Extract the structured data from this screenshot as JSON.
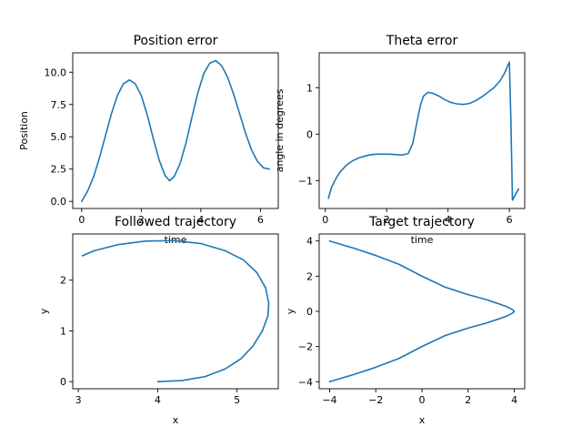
{
  "chart_data": [
    {
      "type": "line",
      "title": "Position error",
      "xlabel": "time",
      "ylabel": "Position",
      "xlim": [
        -0.3,
        6.6
      ],
      "ylim": [
        -0.55,
        11.5
      ],
      "xticks": [
        {
          "v": 0,
          "label": "0"
        },
        {
          "v": 2,
          "label": "2"
        },
        {
          "v": 4,
          "label": "4"
        },
        {
          "v": 6,
          "label": "6"
        }
      ],
      "yticks": [
        {
          "v": 0,
          "label": "0.0"
        },
        {
          "v": 2.5,
          "label": "2.5"
        },
        {
          "v": 5,
          "label": "5.0"
        },
        {
          "v": 7.5,
          "label": "7.5"
        },
        {
          "v": 10,
          "label": "10.0"
        }
      ],
      "x": [
        0,
        0.2,
        0.4,
        0.6,
        0.8,
        1.0,
        1.2,
        1.4,
        1.6,
        1.8,
        2.0,
        2.2,
        2.4,
        2.6,
        2.8,
        2.95,
        3.1,
        3.3,
        3.5,
        3.7,
        3.9,
        4.1,
        4.3,
        4.5,
        4.7,
        4.9,
        5.1,
        5.3,
        5.5,
        5.7,
        5.9,
        6.1,
        6.3
      ],
      "y": [
        0.0,
        0.8,
        1.9,
        3.4,
        5.1,
        6.8,
        8.2,
        9.1,
        9.4,
        9.1,
        8.2,
        6.7,
        4.9,
        3.2,
        2.0,
        1.6,
        1.9,
        2.9,
        4.5,
        6.5,
        8.4,
        9.9,
        10.7,
        10.9,
        10.5,
        9.6,
        8.3,
        6.8,
        5.3,
        4.0,
        3.1,
        2.6,
        2.5
      ]
    },
    {
      "type": "line",
      "title": "Theta error",
      "xlabel": "time",
      "ylabel": "angle in degrees",
      "xlim": [
        -0.2,
        6.5
      ],
      "ylim": [
        -1.6,
        1.75
      ],
      "xticks": [
        {
          "v": 0,
          "label": "0"
        },
        {
          "v": 2,
          "label": "2"
        },
        {
          "v": 4,
          "label": "4"
        },
        {
          "v": 6,
          "label": "6"
        }
      ],
      "yticks": [
        {
          "v": -1,
          "label": "−1"
        },
        {
          "v": 0,
          "label": "0"
        },
        {
          "v": 1,
          "label": "1"
        }
      ],
      "x": [
        0.1,
        0.2,
        0.35,
        0.5,
        0.7,
        0.9,
        1.1,
        1.3,
        1.5,
        1.7,
        1.9,
        2.1,
        2.3,
        2.5,
        2.7,
        2.85,
        3.0,
        3.1,
        3.2,
        3.35,
        3.5,
        3.7,
        3.9,
        4.1,
        4.3,
        4.5,
        4.7,
        4.9,
        5.1,
        5.3,
        5.5,
        5.7,
        5.85,
        5.95,
        6.0,
        6.05,
        6.1,
        6.3
      ],
      "y": [
        -1.38,
        -1.15,
        -0.95,
        -0.8,
        -0.66,
        -0.57,
        -0.51,
        -0.47,
        -0.44,
        -0.43,
        -0.43,
        -0.43,
        -0.44,
        -0.45,
        -0.42,
        -0.2,
        0.3,
        0.62,
        0.82,
        0.9,
        0.88,
        0.82,
        0.74,
        0.68,
        0.65,
        0.64,
        0.66,
        0.72,
        0.8,
        0.9,
        1.0,
        1.15,
        1.32,
        1.48,
        1.55,
        0.3,
        -1.42,
        -1.18
      ]
    },
    {
      "type": "line",
      "title": "Followed trajectory",
      "xlabel": "x",
      "ylabel": "y",
      "xlim": [
        2.93,
        5.52
      ],
      "ylim": [
        -0.14,
        2.91
      ],
      "xticks": [
        {
          "v": 3,
          "label": "3"
        },
        {
          "v": 4,
          "label": "4"
        },
        {
          "v": 5,
          "label": "5"
        }
      ],
      "yticks": [
        {
          "v": 0,
          "label": "0"
        },
        {
          "v": 1,
          "label": "1"
        },
        {
          "v": 2,
          "label": "2"
        }
      ],
      "x": [
        4.0,
        4.3,
        4.6,
        4.85,
        5.05,
        5.2,
        5.32,
        5.39,
        5.4,
        5.36,
        5.25,
        5.08,
        4.85,
        4.55,
        4.2,
        3.85,
        3.5,
        3.2,
        3.05
      ],
      "y": [
        0.0,
        0.02,
        0.1,
        0.25,
        0.45,
        0.7,
        1.0,
        1.3,
        1.55,
        1.85,
        2.15,
        2.4,
        2.58,
        2.72,
        2.78,
        2.77,
        2.7,
        2.58,
        2.48
      ]
    },
    {
      "type": "line",
      "title": "Target trajectory",
      "xlabel": "x",
      "ylabel": "y",
      "xlim": [
        -4.45,
        4.45
      ],
      "ylim": [
        -4.4,
        4.4
      ],
      "xticks": [
        {
          "v": -4,
          "label": "−4"
        },
        {
          "v": -2,
          "label": "−2"
        },
        {
          "v": 0,
          "label": "0"
        },
        {
          "v": 2,
          "label": "2"
        },
        {
          "v": 4,
          "label": "4"
        }
      ],
      "yticks": [
        {
          "v": -4,
          "label": "−4"
        },
        {
          "v": -2,
          "label": "−2"
        },
        {
          "v": 0,
          "label": "0"
        },
        {
          "v": 2,
          "label": "2"
        },
        {
          "v": 4,
          "label": "4"
        }
      ],
      "x": [
        -4.0,
        -3.0,
        -2.0,
        -1.0,
        0.0,
        1.0,
        2.0,
        2.75,
        3.28,
        3.7,
        3.92,
        4.0,
        3.92,
        3.7,
        3.28,
        2.75,
        2.0,
        1.0,
        0.0,
        -1.0,
        -2.0,
        -3.0,
        -4.0
      ],
      "y": [
        4.0,
        3.61,
        3.18,
        2.68,
        2.0,
        1.38,
        0.95,
        0.68,
        0.45,
        0.25,
        0.1,
        0.0,
        -0.1,
        -0.25,
        -0.45,
        -0.68,
        -0.95,
        -1.38,
        -2.0,
        -2.68,
        -3.18,
        -3.61,
        -4.0
      ]
    }
  ]
}
